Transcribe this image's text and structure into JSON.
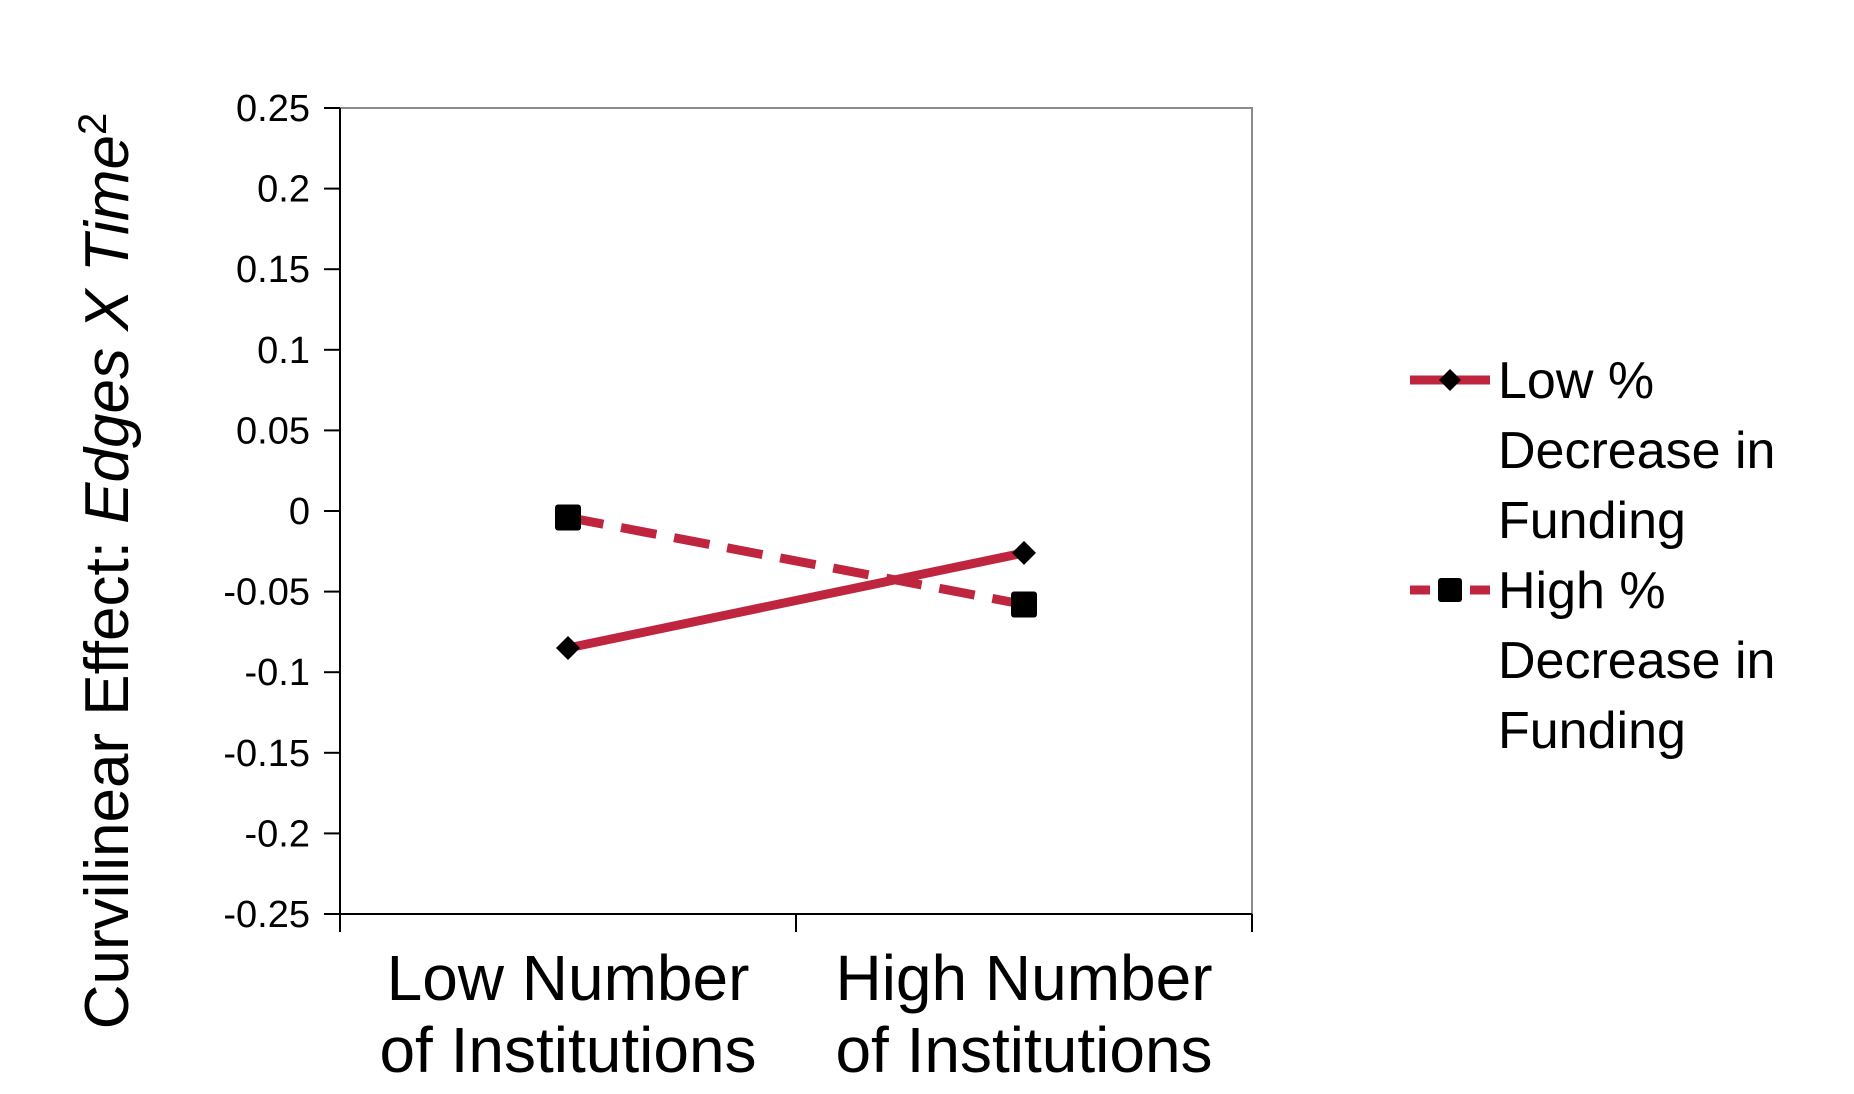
{
  "chart_data": {
    "type": "line",
    "categories": [
      [
        "Low Number",
        "of Institutions"
      ],
      [
        "High Number",
        "of Institutions"
      ]
    ],
    "series": [
      {
        "name": [
          "Low %",
          "Decrease in",
          "Funding"
        ],
        "values": [
          -0.085,
          -0.026
        ],
        "color": "#c0253f",
        "line_style": "solid",
        "marker": "diamond"
      },
      {
        "name": [
          "High %",
          "Decrease in",
          "Funding"
        ],
        "values": [
          -0.004,
          -0.058
        ],
        "color": "#c0253f",
        "line_style": "dashed",
        "marker": "square"
      }
    ],
    "ylabel_parts": [
      {
        "text": "Curvilinear Effect: ",
        "italic": false
      },
      {
        "text": "Edges X Time",
        "italic": true
      },
      {
        "text": "2",
        "superscript": true
      }
    ],
    "ylim": [
      -0.25,
      0.25
    ],
    "yticks": [
      "0.25",
      "0.2",
      "0.15",
      "0.1",
      "0.05",
      "0",
      "-0.05",
      "-0.1",
      "-0.15",
      "-0.2",
      "-0.25"
    ],
    "grid": false,
    "legend_position": "right"
  }
}
